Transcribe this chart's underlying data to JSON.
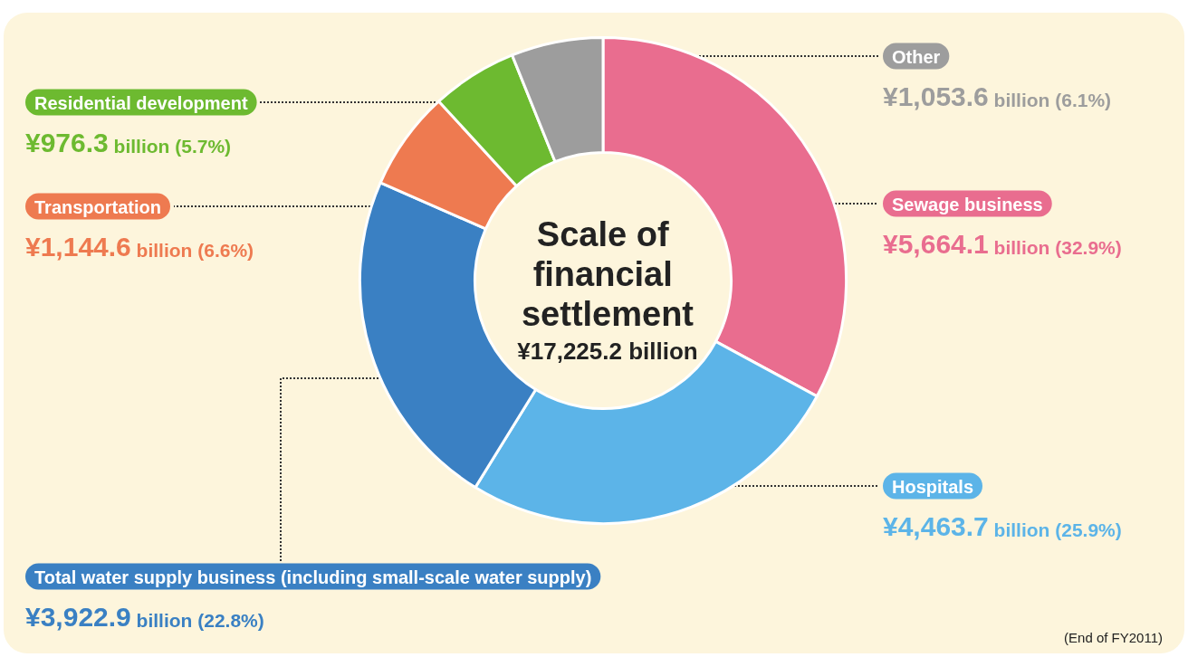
{
  "chart_data": {
    "type": "donut",
    "title": "Scale of financial settlement",
    "subtitle": "¥17,225.2 billion",
    "categories": [
      "Sewage business",
      "Hospitals",
      "Total water supply business (including small-scale water supply)",
      "Transportation",
      "Residential development",
      "Other"
    ],
    "values": [
      32.9,
      25.9,
      22.8,
      6.6,
      5.7,
      6.1
    ],
    "colors": [
      "#e96d8f",
      "#5cb4e8",
      "#3a80c3",
      "#ee7a50",
      "#6dba30",
      "#9d9d9d"
    ],
    "value_labels": [
      "¥5,664.1 billion (32.9%)",
      "¥4,463.7 billion (25.9%)",
      "¥3,922.9 billion (22.8%)",
      "¥1,144.6 billion (6.6%)",
      "¥976.3 billion (5.7%)",
      "¥1,053.6 billion (6.1%)"
    ],
    "annotations": [
      "(End of FY2011)"
    ]
  }
}
